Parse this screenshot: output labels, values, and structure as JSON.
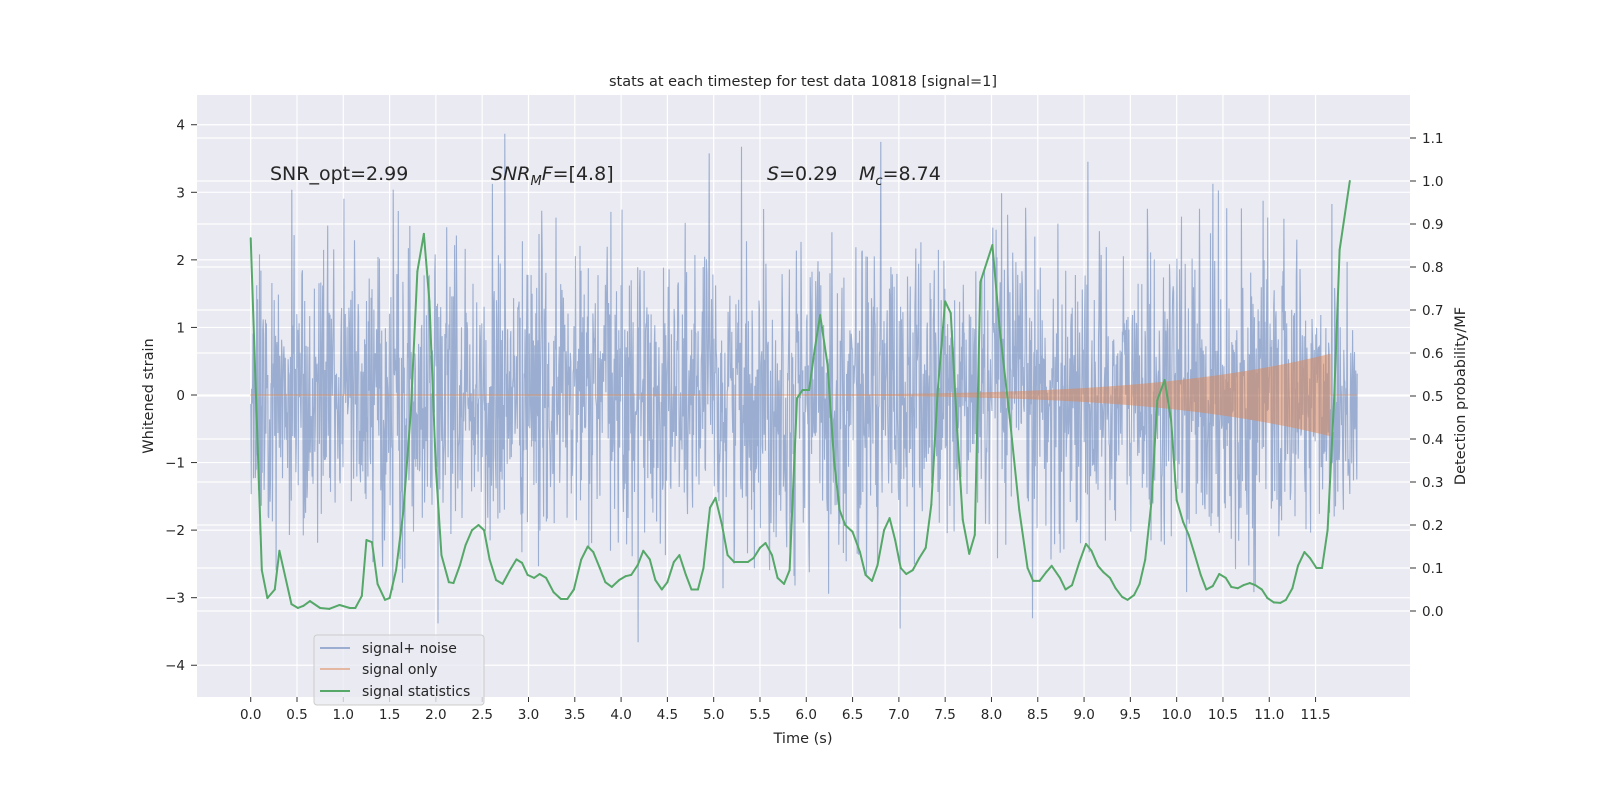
{
  "chart_data": {
    "type": "line",
    "title": "stats at each timestep for test data 10818 [signal=1]",
    "xlabel": "Time (s)",
    "ylabel_left": "Whitened strain",
    "ylabel_right": "Detection probability/MF",
    "xlim": [
      -0.58,
      12.52
    ],
    "ylim_left": [
      -4.47,
      4.44
    ],
    "ylim_right": [
      -0.2,
      1.2
    ],
    "grid": true,
    "legend_position": "bottom-left",
    "x_ticks": [
      "0.0",
      "0.5",
      "1.0",
      "1.5",
      "2.0",
      "2.5",
      "3.0",
      "3.5",
      "4.0",
      "4.5",
      "5.0",
      "5.5",
      "6.0",
      "6.5",
      "7.0",
      "7.5",
      "8.0",
      "8.5",
      "9.0",
      "9.5",
      "10.0",
      "10.5",
      "11.0",
      "11.5"
    ],
    "y_ticks_left": [
      "4",
      "3",
      "2",
      "1",
      "0",
      "−1",
      "−2",
      "−3",
      "−4"
    ],
    "y_ticks_right": [
      "1.1",
      "1.0",
      "0.9",
      "0.8",
      "0.7",
      "0.6",
      "0.5",
      "0.4",
      "0.3",
      "0.2",
      "0.1",
      "0.0"
    ],
    "annotations": {
      "snr_opt": "SNR_opt=2.99",
      "snr_mf_base": "SNR",
      "snr_mf_sub": "M",
      "snr_mf_tail": "F",
      "snr_mf_value": "=[4.8]",
      "s_symbol": "S",
      "s_value": "=0.29",
      "mc_symbol": "M",
      "mc_sub": "c",
      "mc_value": "=8.74"
    },
    "series": [
      {
        "name": "signal+ noise",
        "axis": "left",
        "color": "#4C72B0",
        "kind": "whitened noisy strain, approx. range ±4"
      },
      {
        "name": "signal only",
        "axis": "left",
        "color": "#DD8452",
        "kind": "chirp, peak amplitude ~0.55 near t=11.65"
      },
      {
        "name": "signal statistics",
        "axis": "right",
        "color": "#55A868",
        "points": [
          [
            0,
            0.867
          ],
          [
            0.12,
            0.095
          ],
          [
            0.18,
            0.03
          ],
          [
            0.26,
            0.05
          ],
          [
            0.31,
            0.14
          ],
          [
            0.44,
            0.016
          ],
          [
            0.51,
            0.007
          ],
          [
            0.57,
            0.012
          ],
          [
            0.64,
            0.023
          ],
          [
            0.75,
            0.007
          ],
          [
            0.85,
            0.005
          ],
          [
            0.96,
            0.014
          ],
          [
            1.07,
            0.007
          ],
          [
            1.13,
            0.007
          ],
          [
            1.2,
            0.035
          ],
          [
            1.25,
            0.165
          ],
          [
            1.31,
            0.16
          ],
          [
            1.37,
            0.063
          ],
          [
            1.45,
            0.026
          ],
          [
            1.5,
            0.03
          ],
          [
            1.57,
            0.095
          ],
          [
            1.65,
            0.235
          ],
          [
            1.73,
            0.467
          ],
          [
            1.8,
            0.79
          ],
          [
            1.87,
            0.877
          ],
          [
            1.93,
            0.72
          ],
          [
            2.0,
            0.33
          ],
          [
            2.06,
            0.13
          ],
          [
            2.14,
            0.067
          ],
          [
            2.19,
            0.065
          ],
          [
            2.26,
            0.107
          ],
          [
            2.32,
            0.153
          ],
          [
            2.39,
            0.188
          ],
          [
            2.46,
            0.2
          ],
          [
            2.52,
            0.188
          ],
          [
            2.58,
            0.12
          ],
          [
            2.65,
            0.072
          ],
          [
            2.72,
            0.063
          ],
          [
            2.8,
            0.095
          ],
          [
            2.87,
            0.12
          ],
          [
            2.93,
            0.112
          ],
          [
            2.99,
            0.084
          ],
          [
            3.06,
            0.077
          ],
          [
            3.12,
            0.086
          ],
          [
            3.19,
            0.077
          ],
          [
            3.27,
            0.044
          ],
          [
            3.35,
            0.028
          ],
          [
            3.42,
            0.028
          ],
          [
            3.49,
            0.05
          ],
          [
            3.57,
            0.12
          ],
          [
            3.64,
            0.15
          ],
          [
            3.7,
            0.137
          ],
          [
            3.77,
            0.1
          ],
          [
            3.83,
            0.067
          ],
          [
            3.9,
            0.056
          ],
          [
            3.98,
            0.072
          ],
          [
            4.05,
            0.081
          ],
          [
            4.11,
            0.084
          ],
          [
            4.18,
            0.107
          ],
          [
            4.24,
            0.14
          ],
          [
            4.31,
            0.12
          ],
          [
            4.37,
            0.072
          ],
          [
            4.44,
            0.05
          ],
          [
            4.5,
            0.067
          ],
          [
            4.57,
            0.114
          ],
          [
            4.63,
            0.13
          ],
          [
            4.7,
            0.084
          ],
          [
            4.76,
            0.05
          ],
          [
            4.83,
            0.05
          ],
          [
            4.89,
            0.1
          ],
          [
            4.96,
            0.24
          ],
          [
            5.02,
            0.263
          ],
          [
            5.09,
            0.2
          ],
          [
            5.15,
            0.13
          ],
          [
            5.22,
            0.114
          ],
          [
            5.28,
            0.114
          ],
          [
            5.37,
            0.114
          ],
          [
            5.43,
            0.123
          ],
          [
            5.5,
            0.147
          ],
          [
            5.56,
            0.158
          ],
          [
            5.63,
            0.13
          ],
          [
            5.69,
            0.077
          ],
          [
            5.76,
            0.063
          ],
          [
            5.82,
            0.095
          ],
          [
            5.9,
            0.495
          ],
          [
            5.96,
            0.514
          ],
          [
            6.03,
            0.514
          ],
          [
            6.09,
            0.607
          ],
          [
            6.15,
            0.688
          ],
          [
            6.23,
            0.572
          ],
          [
            6.3,
            0.35
          ],
          [
            6.36,
            0.235
          ],
          [
            6.42,
            0.2
          ],
          [
            6.5,
            0.184
          ],
          [
            6.58,
            0.137
          ],
          [
            6.64,
            0.084
          ],
          [
            6.71,
            0.07
          ],
          [
            6.77,
            0.107
          ],
          [
            6.84,
            0.188
          ],
          [
            6.9,
            0.216
          ],
          [
            6.96,
            0.165
          ],
          [
            7.02,
            0.1
          ],
          [
            7.08,
            0.086
          ],
          [
            7.15,
            0.095
          ],
          [
            7.22,
            0.123
          ],
          [
            7.29,
            0.147
          ],
          [
            7.35,
            0.247
          ],
          [
            7.42,
            0.514
          ],
          [
            7.5,
            0.72
          ],
          [
            7.56,
            0.693
          ],
          [
            7.63,
            0.42
          ],
          [
            7.69,
            0.212
          ],
          [
            7.76,
            0.133
          ],
          [
            7.82,
            0.177
          ],
          [
            7.88,
            0.765
          ],
          [
            8.01,
            0.851
          ],
          [
            8.09,
            0.653
          ],
          [
            8.2,
            0.444
          ],
          [
            8.3,
            0.235
          ],
          [
            8.39,
            0.1
          ],
          [
            8.45,
            0.07
          ],
          [
            8.52,
            0.07
          ],
          [
            8.59,
            0.09
          ],
          [
            8.65,
            0.105
          ],
          [
            8.74,
            0.077
          ],
          [
            8.8,
            0.05
          ],
          [
            8.87,
            0.06
          ],
          [
            8.95,
            0.114
          ],
          [
            9.02,
            0.156
          ],
          [
            9.08,
            0.14
          ],
          [
            9.15,
            0.105
          ],
          [
            9.21,
            0.09
          ],
          [
            9.28,
            0.077
          ],
          [
            9.34,
            0.053
          ],
          [
            9.41,
            0.033
          ],
          [
            9.47,
            0.026
          ],
          [
            9.54,
            0.037
          ],
          [
            9.6,
            0.063
          ],
          [
            9.66,
            0.119
          ],
          [
            9.73,
            0.258
          ],
          [
            9.79,
            0.49
          ],
          [
            9.87,
            0.537
          ],
          [
            9.94,
            0.444
          ],
          [
            10.0,
            0.258
          ],
          [
            10.07,
            0.207
          ],
          [
            10.13,
            0.177
          ],
          [
            10.19,
            0.135
          ],
          [
            10.26,
            0.084
          ],
          [
            10.32,
            0.05
          ],
          [
            10.39,
            0.058
          ],
          [
            10.46,
            0.086
          ],
          [
            10.53,
            0.077
          ],
          [
            10.59,
            0.056
          ],
          [
            10.66,
            0.053
          ],
          [
            10.72,
            0.06
          ],
          [
            10.79,
            0.065
          ],
          [
            10.85,
            0.06
          ],
          [
            10.92,
            0.05
          ],
          [
            10.98,
            0.03
          ],
          [
            11.05,
            0.02
          ],
          [
            11.12,
            0.019
          ],
          [
            11.18,
            0.026
          ],
          [
            11.25,
            0.053
          ],
          [
            11.31,
            0.105
          ],
          [
            11.38,
            0.137
          ],
          [
            11.44,
            0.123
          ],
          [
            11.51,
            0.1
          ],
          [
            11.57,
            0.1
          ],
          [
            11.63,
            0.188
          ],
          [
            11.7,
            0.49
          ],
          [
            11.76,
            0.84
          ],
          [
            11.87,
            1.0
          ]
        ]
      }
    ]
  }
}
